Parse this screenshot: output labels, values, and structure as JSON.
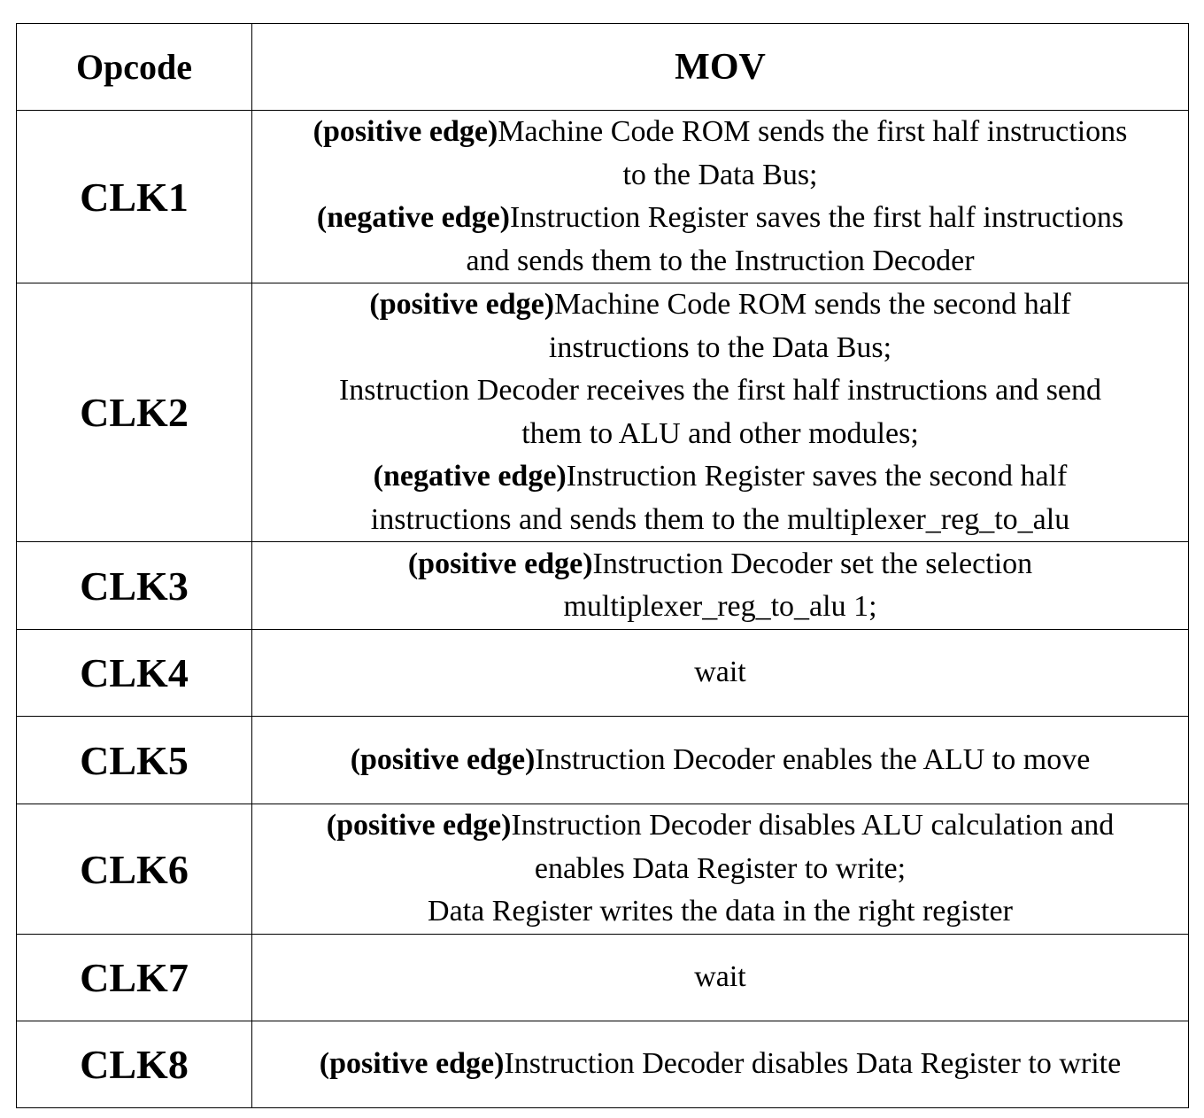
{
  "table": {
    "header": {
      "opcode_label": "Opcode",
      "instruction_label": "MOV"
    },
    "rows": [
      {
        "clk": "CLK1",
        "lines": [
          {
            "bold": "(positive edge)",
            "text": "Machine Code ROM sends the first half instructions"
          },
          {
            "bold": "",
            "text": "to the Data Bus;"
          },
          {
            "bold": "(negative edge)",
            "text": "Instruction Register saves the first half instructions"
          },
          {
            "bold": "",
            "text": "and sends them to the Instruction Decoder"
          }
        ]
      },
      {
        "clk": "CLK2",
        "lines": [
          {
            "bold": "(positive edge)",
            "text": "Machine Code ROM sends the second half"
          },
          {
            "bold": "",
            "text": "instructions to the Data Bus;"
          },
          {
            "bold": "",
            "text": "Instruction Decoder receives the first half instructions and send"
          },
          {
            "bold": "",
            "text": "them to ALU and other modules;"
          },
          {
            "bold": "(negative edge)",
            "text": "Instruction Register saves the second half"
          },
          {
            "bold": "",
            "text": "instructions and sends them to the multiplexer_reg_to_alu"
          }
        ]
      },
      {
        "clk": "CLK3",
        "lines": [
          {
            "bold": "(positive edge)",
            "text": "Instruction Decoder set the selection"
          },
          {
            "bold": "",
            "text": "multiplexer_reg_to_alu 1;"
          }
        ]
      },
      {
        "clk": "CLK4",
        "lines": [
          {
            "bold": "",
            "text": "wait"
          }
        ]
      },
      {
        "clk": "CLK5",
        "lines": [
          {
            "bold": "(positive edge)",
            "text": "Instruction Decoder enables the ALU to move"
          }
        ]
      },
      {
        "clk": "CLK6",
        "lines": [
          {
            "bold": "(positive edge)",
            "text": "Instruction Decoder disables ALU calculation and"
          },
          {
            "bold": "",
            "text": "enables Data Register to write;"
          },
          {
            "bold": "",
            "text": "Data Register writes the data in the right register"
          }
        ]
      },
      {
        "clk": "CLK7",
        "lines": [
          {
            "bold": "",
            "text": "wait"
          }
        ]
      },
      {
        "clk": "CLK8",
        "lines": [
          {
            "bold": "(positive edge)",
            "text": "Instruction Decoder disables Data Register to write"
          }
        ]
      }
    ]
  }
}
